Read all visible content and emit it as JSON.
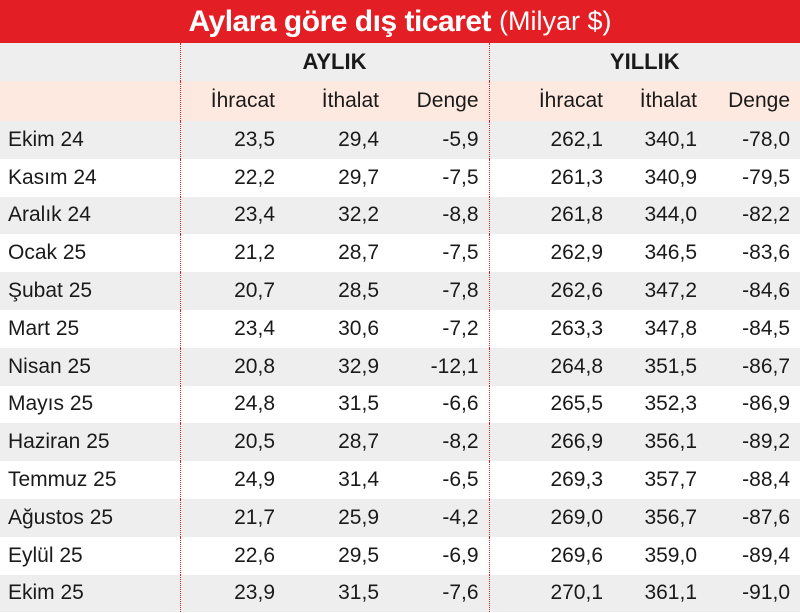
{
  "title": "Aylara göre dış ticaret",
  "unit": "(Milyar $)",
  "colors": {
    "accent": "#e31e24",
    "header_band": "#fde9e0",
    "stripe": "#eeeeee"
  },
  "chart_data": {
    "type": "table",
    "title": "Aylara göre dış ticaret",
    "unit": "(Milyar $)",
    "groups": [
      "AYLIK",
      "YILLIK"
    ],
    "columns": [
      "İhracat",
      "İthalat",
      "Denge",
      "İhracat",
      "İthalat",
      "Denge"
    ],
    "rows": [
      {
        "label": "Ekim 24",
        "values": [
          "23,5",
          "29,4",
          "-5,9",
          "262,1",
          "340,1",
          "-78,0"
        ]
      },
      {
        "label": "Kasım 24",
        "values": [
          "22,2",
          "29,7",
          "-7,5",
          "261,3",
          "340,9",
          "-79,5"
        ]
      },
      {
        "label": "Aralık 24",
        "values": [
          "23,4",
          "32,2",
          "-8,8",
          "261,8",
          "344,0",
          "-82,2"
        ]
      },
      {
        "label": "Ocak 25",
        "values": [
          "21,2",
          "28,7",
          "-7,5",
          "262,9",
          "346,5",
          "-83,6"
        ]
      },
      {
        "label": "Şubat 25",
        "values": [
          "20,7",
          "28,5",
          "-7,8",
          "262,6",
          "347,2",
          "-84,6"
        ]
      },
      {
        "label": "Mart 25",
        "values": [
          "23,4",
          "30,6",
          "-7,2",
          "263,3",
          "347,8",
          "-84,5"
        ]
      },
      {
        "label": "Nisan 25",
        "values": [
          "20,8",
          "32,9",
          "-12,1",
          "264,8",
          "351,5",
          "-86,7"
        ]
      },
      {
        "label": "Mayıs 25",
        "values": [
          "24,8",
          "31,5",
          "-6,6",
          "265,5",
          "352,3",
          "-86,9"
        ]
      },
      {
        "label": "Haziran 25",
        "values": [
          "20,5",
          "28,7",
          "-8,2",
          "266,9",
          "356,1",
          "-89,2"
        ]
      },
      {
        "label": "Temmuz 25",
        "values": [
          "24,9",
          "31,4",
          "-6,5",
          "269,3",
          "357,7",
          "-88,4"
        ]
      },
      {
        "label": "Ağustos 25",
        "values": [
          "21,7",
          "25,9",
          "-4,2",
          "269,0",
          "356,7",
          "-87,6"
        ]
      },
      {
        "label": "Eylül 25",
        "values": [
          "22,6",
          "29,5",
          "-6,9",
          "269,6",
          "359,0",
          "-89,4"
        ]
      },
      {
        "label": "Ekim 25",
        "values": [
          "23,9",
          "31,5",
          "-7,6",
          "270,1",
          "361,1",
          "-91,0"
        ]
      }
    ]
  }
}
